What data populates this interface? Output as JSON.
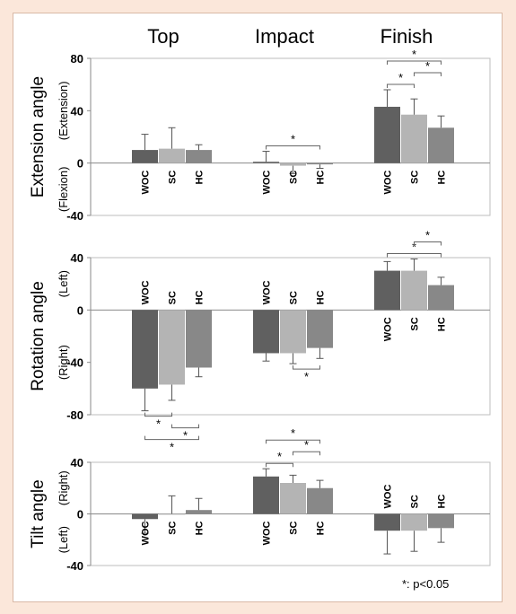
{
  "colors": {
    "WOC": "#606060",
    "SC": "#b4b4b4",
    "HC": "#888888",
    "axis": "#8a8a8a",
    "background": "#fbe7da"
  },
  "note": "*: p<0.05",
  "chart_data": {
    "type": "bar",
    "groups": [
      "Top",
      "Impact",
      "Finish"
    ],
    "categories": [
      "WOC",
      "SC",
      "HC"
    ],
    "panels": [
      {
        "ylabel": "Extension angle",
        "ysub_pos": "(Extension)",
        "ysub_neg": "(Flexion)",
        "ylim": [
          -40,
          80
        ],
        "yticks": [
          -40,
          0,
          40,
          80
        ],
        "series": [
          {
            "group": "Top",
            "values": [
              10,
              11,
              10
            ],
            "errors": [
              12,
              16,
              4
            ]
          },
          {
            "group": "Impact",
            "values": [
              1,
              -2,
              -1
            ],
            "errors": [
              8,
              6,
              3
            ]
          },
          {
            "group": "Finish",
            "values": [
              43,
              37,
              27
            ],
            "errors": [
              13,
              12,
              9
            ]
          }
        ],
        "significance": [
          {
            "group": "Impact",
            "from": "WOC",
            "to": "HC",
            "label": "*"
          },
          {
            "group": "Finish",
            "from": "WOC",
            "to": "SC",
            "label": "*"
          },
          {
            "group": "Finish",
            "from": "SC",
            "to": "HC",
            "label": "*"
          },
          {
            "group": "Finish",
            "from": "WOC",
            "to": "HC",
            "label": "*"
          }
        ]
      },
      {
        "ylabel": "Rotation angle",
        "ysub_pos": "(Left)",
        "ysub_neg": "(Right)",
        "ylim": [
          -80,
          40
        ],
        "yticks": [
          -80,
          -40,
          0,
          40
        ],
        "series": [
          {
            "group": "Top",
            "values": [
              -60,
              -57,
              -44
            ],
            "errors": [
              17,
              12,
              7
            ]
          },
          {
            "group": "Impact",
            "values": [
              -33,
              -33,
              -29
            ],
            "errors": [
              6,
              8,
              8
            ]
          },
          {
            "group": "Finish",
            "values": [
              30,
              30,
              19
            ],
            "errors": [
              7,
              9,
              6
            ]
          }
        ],
        "significance": [
          {
            "group": "Top",
            "from": "WOC",
            "to": "SC",
            "label": "*"
          },
          {
            "group": "Top",
            "from": "SC",
            "to": "HC",
            "label": "*"
          },
          {
            "group": "Top",
            "from": "WOC",
            "to": "HC",
            "label": "*"
          },
          {
            "group": "Impact",
            "from": "SC",
            "to": "HC",
            "label": "*"
          },
          {
            "group": "Finish",
            "from": "WOC",
            "to": "HC",
            "label": "*"
          },
          {
            "group": "Finish",
            "from": "SC",
            "to": "HC",
            "label": "*"
          }
        ]
      },
      {
        "ylabel": "Tilt angle",
        "ysub_pos": "(Right)",
        "ysub_neg": "(Left)",
        "ylim": [
          -40,
          40
        ],
        "yticks": [
          -40,
          0,
          40
        ],
        "series": [
          {
            "group": "Top",
            "values": [
              -4,
              0,
              3
            ],
            "errors": [
              11,
              14,
              9
            ]
          },
          {
            "group": "Impact",
            "values": [
              29,
              24,
              20
            ],
            "errors": [
              6,
              6,
              6
            ]
          },
          {
            "group": "Finish",
            "values": [
              -13,
              -13,
              -11
            ],
            "errors": [
              18,
              16,
              11
            ]
          }
        ],
        "significance": [
          {
            "group": "Impact",
            "from": "WOC",
            "to": "SC",
            "label": "*"
          },
          {
            "group": "Impact",
            "from": "SC",
            "to": "HC",
            "label": "*"
          },
          {
            "group": "Impact",
            "from": "WOC",
            "to": "HC",
            "label": "*"
          }
        ]
      }
    ]
  }
}
